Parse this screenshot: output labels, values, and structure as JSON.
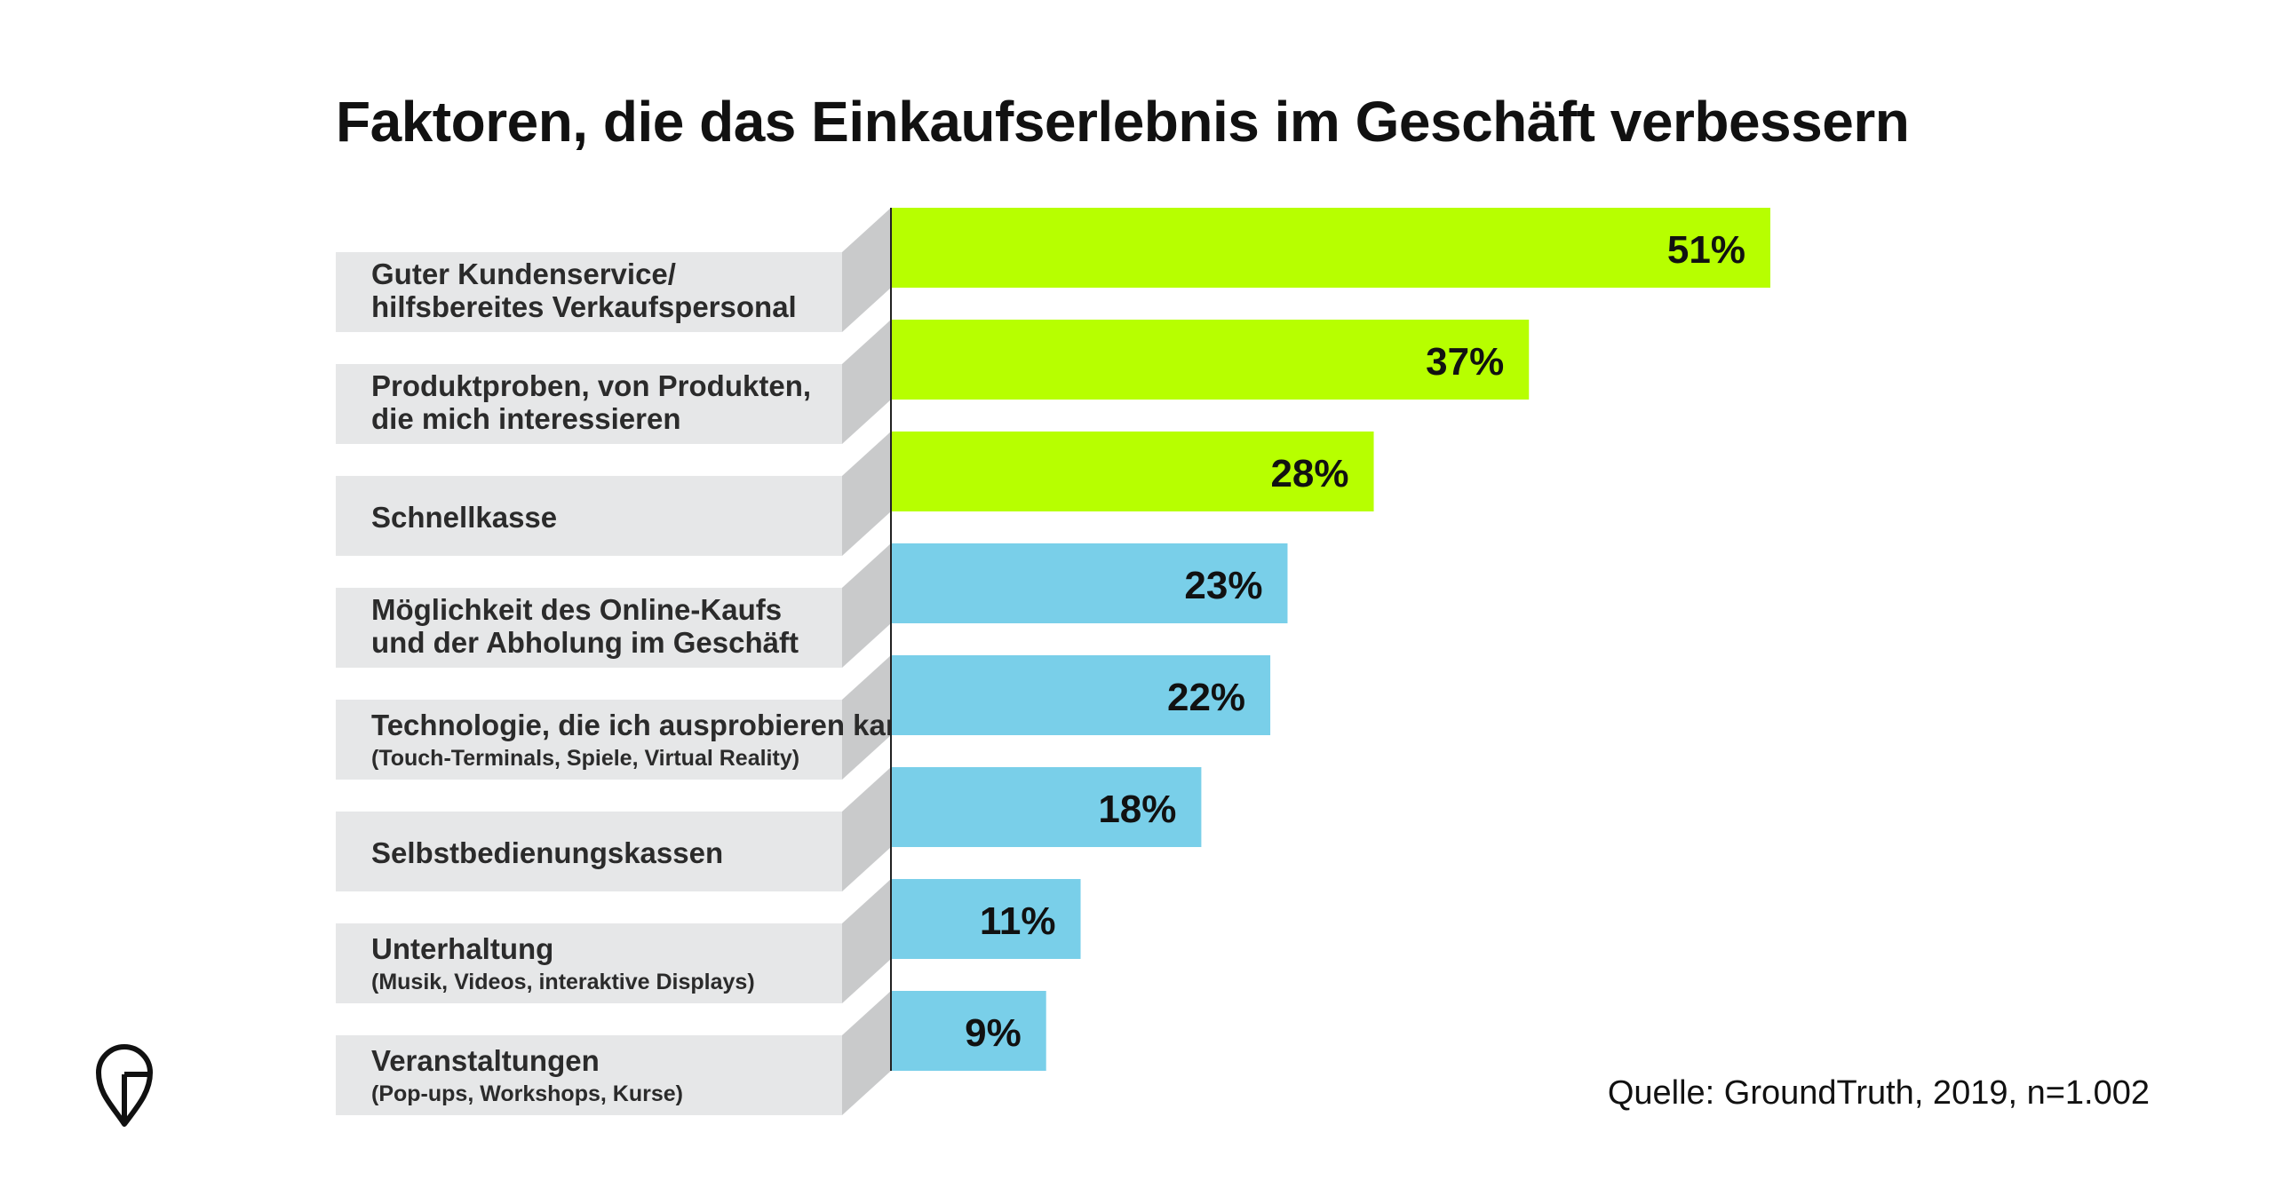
{
  "title": "Faktoren, die das Einkaufserlebnis im Geschäft verbessern",
  "source": "Quelle: GroundTruth, 2019, n=1.002",
  "colors": {
    "highlight": "#b7ff00",
    "default": "#79cfe9",
    "label_bg": "#e6e7e8",
    "label_side": "#c9cacb"
  },
  "chart_data": {
    "type": "bar",
    "orientation": "horizontal",
    "title": "Faktoren, die das Einkaufserlebnis im Geschäft verbessern",
    "value_suffix": "%",
    "xlim": [
      0,
      51
    ],
    "categories": [
      {
        "lines": [
          "Guter Kundenservice/",
          "hilfsbereites Verkaufspersonal"
        ],
        "sub": ""
      },
      {
        "lines": [
          "Produktproben, von Produkten,",
          "die mich interessieren"
        ],
        "sub": ""
      },
      {
        "lines": [
          "Schnellkasse"
        ],
        "sub": ""
      },
      {
        "lines": [
          "Möglichkeit des Online-Kaufs",
          "und der Abholung im Geschäft"
        ],
        "sub": ""
      },
      {
        "lines": [
          "Technologie, die ich ausprobieren kann"
        ],
        "sub": "(Touch-Terminals, Spiele, Virtual Reality)"
      },
      {
        "lines": [
          "Selbstbedienungskassen"
        ],
        "sub": ""
      },
      {
        "lines": [
          "Unterhaltung"
        ],
        "sub": "(Musik, Videos, interaktive Displays)"
      },
      {
        "lines": [
          "Veranstaltungen"
        ],
        "sub": "(Pop-ups, Workshops, Kurse)"
      }
    ],
    "values": [
      51,
      37,
      28,
      23,
      22,
      18,
      11,
      9
    ],
    "value_labels": [
      "51%",
      "37%",
      "28%",
      "23%",
      "22%",
      "18%",
      "11%",
      "9%"
    ],
    "highlight": [
      true,
      true,
      true,
      false,
      false,
      false,
      false,
      false
    ]
  }
}
